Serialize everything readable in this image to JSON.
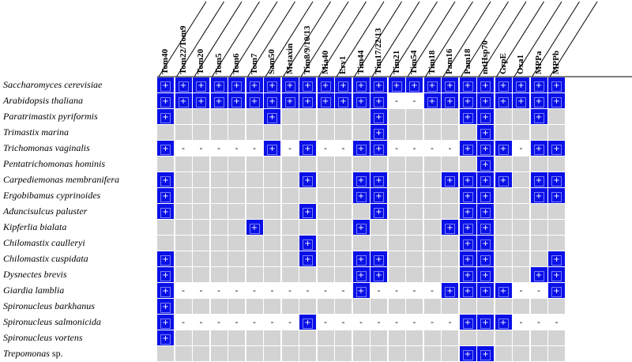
{
  "columns": [
    "Tom40",
    "Tom22/Tom9",
    "Tom20",
    "Tom5",
    "Tom6",
    "Tom7",
    "Sam50",
    "Metaxin",
    "Tim8/9/10/13",
    "Mia40",
    "Erv1",
    "Tim44",
    "Tim17/22/13",
    "Tim21",
    "Tim54",
    "Tim18",
    "Pam16",
    "Pam18",
    "mtHsp70",
    "GrpE",
    "Oxa1",
    "MPPa",
    "MPPb"
  ],
  "rows": [
    {
      "name": "Saccharomyces cerevisiae",
      "cells": "+++++++++++++++++++++++"
    },
    {
      "name": "Arabidopsis thaliana",
      "cells": "+++++++++++++--++++++++"
    },
    {
      "name": "Paratrimastix pyriformis",
      "cells": "+.....+.....+....++..+."
    },
    {
      "name": "Trimastix marina",
      "cells": "............+.....+...."
    },
    {
      "name": "Trichomonas vaginalis",
      "cells": "+-----+-+--++----+++-++"
    },
    {
      "name": "Pentatrichomonas hominis",
      "cells": "..................+...."
    },
    {
      "name": "Carpediemonas membranifera",
      "cells": "+.......+..++...++++.++"
    },
    {
      "name": "Ergobibamus cyprinoides",
      "cells": "+..........++....++..++"
    },
    {
      "name": "Aduncisulcus paluster",
      "cells": "+.......+...+....++...."
    },
    {
      "name": "Kipferlia bialata",
      "cells": ".....+.....+....+++...."
    },
    {
      "name": "Chilomastix caulleryi",
      "cells": "........+........++...."
    },
    {
      "name": "Chilomastix cuspidata",
      "cells": "+.......+..++....++...+"
    },
    {
      "name": "Dysnectes brevis",
      "cells": "+..........++....++..++"
    },
    {
      "name": "Giardia lamblia",
      "cells": "+----------+----++++--+"
    },
    {
      "name": "Spironucleus barkhanus",
      "cells": "+......................"
    },
    {
      "name": "Spironucleus salmonicida",
      "cells": "+-------+--------+++---"
    },
    {
      "name": "Spironucleus vortens",
      "cells": "+......................"
    },
    {
      "name": "Trepomonas",
      "suffix": " sp.",
      "cells": ".................++...."
    }
  ],
  "symbols": {
    "present": "+",
    "absent": "-"
  },
  "colors": {
    "present": "#0a10e6",
    "unknown": "#d3d3d3",
    "absent": "#ffffff"
  }
}
